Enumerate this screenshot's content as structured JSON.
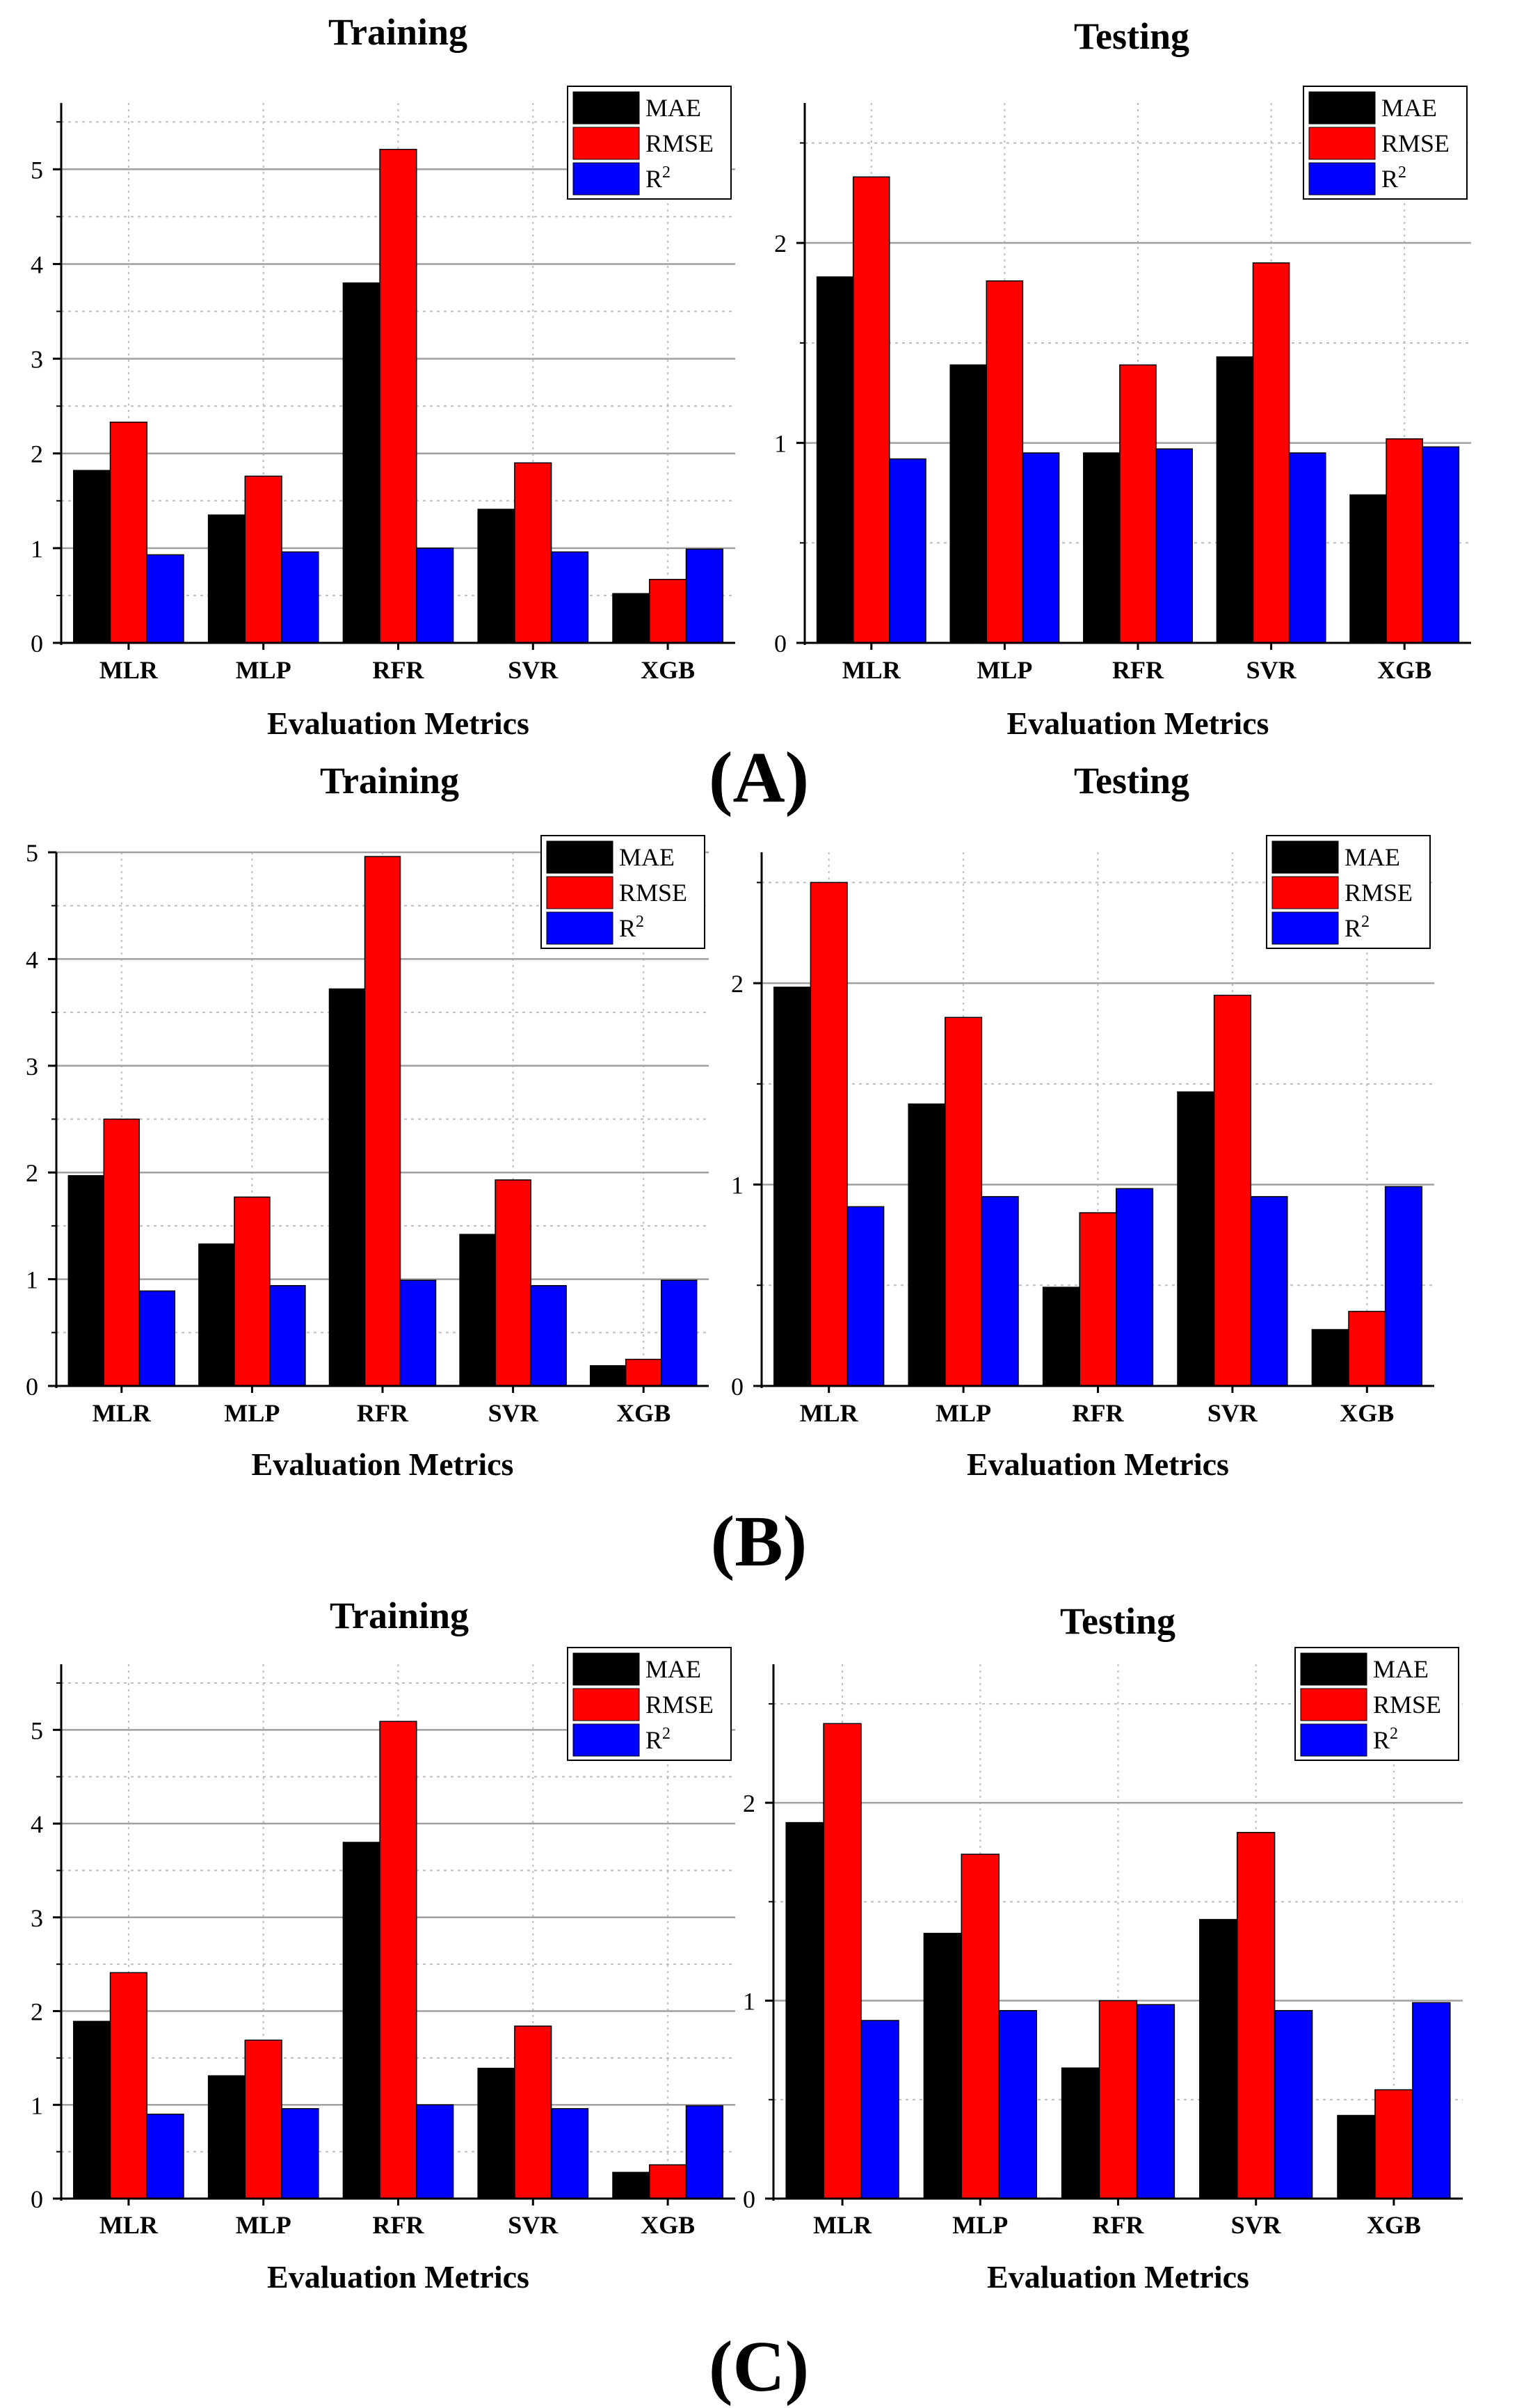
{
  "colors": {
    "mae": "#000000",
    "rmse": "#ff0000",
    "r2": "#0000ff",
    "grid_major": "#a0a0a0",
    "grid_minor": "#bdbdbd"
  },
  "panel_labels": [
    "(A)",
    "(B)",
    "(C)"
  ],
  "chart_data": [
    {
      "panel": "(A)",
      "type": "bar",
      "title": "Training",
      "xlabel": "Evaluation Metrics",
      "ylabel": "",
      "categories": [
        "MLR",
        "MLP",
        "RFR",
        "SVR",
        "XGB"
      ],
      "ylim": [
        0,
        5.7
      ],
      "yticks": [
        0,
        1,
        2,
        3,
        4,
        5
      ],
      "legend": [
        "MAE",
        "RMSE",
        "R"
      ],
      "legend_sup": "2",
      "legend_position": "top-right",
      "series": [
        {
          "name": "MAE",
          "values": [
            1.82,
            1.35,
            3.8,
            1.41,
            0.52
          ]
        },
        {
          "name": "RMSE",
          "values": [
            2.33,
            1.76,
            5.21,
            1.9,
            0.67
          ]
        },
        {
          "name": "R2",
          "values": [
            0.93,
            0.96,
            1.0,
            0.96,
            0.99
          ]
        }
      ]
    },
    {
      "panel": "(A)",
      "type": "bar",
      "title": "Testing",
      "xlabel": "Evaluation Metrics",
      "ylabel": "",
      "categories": [
        "MLR",
        "MLP",
        "RFR",
        "SVR",
        "XGB"
      ],
      "ylim": [
        0,
        2.7
      ],
      "yticks": [
        0,
        1,
        2
      ],
      "legend": [
        "MAE",
        "RMSE",
        "R"
      ],
      "legend_sup": "2",
      "legend_position": "top-right",
      "series": [
        {
          "name": "MAE",
          "values": [
            1.83,
            1.39,
            0.95,
            1.43,
            0.74
          ]
        },
        {
          "name": "RMSE",
          "values": [
            2.33,
            1.81,
            1.39,
            1.9,
            1.02
          ]
        },
        {
          "name": "R2",
          "values": [
            0.92,
            0.95,
            0.97,
            0.95,
            0.98
          ]
        }
      ]
    },
    {
      "panel": "(B)",
      "type": "bar",
      "title": "Training",
      "xlabel": "Evaluation Metrics",
      "ylabel": "",
      "categories": [
        "MLR",
        "MLP",
        "RFR",
        "SVR",
        "XGB"
      ],
      "ylim": [
        0,
        5.0
      ],
      "yticks": [
        0,
        1,
        2,
        3,
        4,
        5
      ],
      "legend": [
        "MAE",
        "RMSE",
        "R"
      ],
      "legend_sup": "2",
      "legend_position": "top-right",
      "series": [
        {
          "name": "MAE",
          "values": [
            1.97,
            1.33,
            3.72,
            1.42,
            0.19
          ]
        },
        {
          "name": "RMSE",
          "values": [
            2.5,
            1.77,
            4.96,
            1.93,
            0.25
          ]
        },
        {
          "name": "R2",
          "values": [
            0.89,
            0.94,
            0.99,
            0.94,
            0.99
          ]
        }
      ]
    },
    {
      "panel": "(B)",
      "type": "bar",
      "title": "Testing",
      "xlabel": "Evaluation Metrics",
      "ylabel": "",
      "categories": [
        "MLR",
        "MLP",
        "RFR",
        "SVR",
        "XGB"
      ],
      "ylim": [
        0,
        2.65
      ],
      "yticks": [
        0,
        1,
        2
      ],
      "legend": [
        "MAE",
        "RMSE",
        "R"
      ],
      "legend_sup": "2",
      "legend_position": "top-right",
      "series": [
        {
          "name": "MAE",
          "values": [
            1.98,
            1.4,
            0.49,
            1.46,
            0.28
          ]
        },
        {
          "name": "RMSE",
          "values": [
            2.5,
            1.83,
            0.86,
            1.94,
            0.37
          ]
        },
        {
          "name": "R2",
          "values": [
            0.89,
            0.94,
            0.98,
            0.94,
            0.99
          ]
        }
      ]
    },
    {
      "panel": "(C)",
      "type": "bar",
      "title": "Training",
      "xlabel": "Evaluation Metrics",
      "ylabel": "",
      "categories": [
        "MLR",
        "MLP",
        "RFR",
        "SVR",
        "XGB"
      ],
      "ylim": [
        0,
        5.7
      ],
      "yticks": [
        0,
        1,
        2,
        3,
        4,
        5
      ],
      "legend": [
        "MAE",
        "RMSE",
        "R"
      ],
      "legend_sup": "2",
      "legend_position": "top-right",
      "series": [
        {
          "name": "MAE",
          "values": [
            1.89,
            1.31,
            3.8,
            1.39,
            0.28
          ]
        },
        {
          "name": "RMSE",
          "values": [
            2.41,
            1.69,
            5.09,
            1.84,
            0.36
          ]
        },
        {
          "name": "R2",
          "values": [
            0.9,
            0.96,
            1.0,
            0.96,
            0.99
          ]
        }
      ]
    },
    {
      "panel": "(C)",
      "type": "bar",
      "title": "Testing",
      "xlabel": "Evaluation Metrics",
      "ylabel": "",
      "categories": [
        "MLR",
        "MLP",
        "RFR",
        "SVR",
        "XGB"
      ],
      "ylim": [
        0,
        2.7
      ],
      "yticks": [
        0,
        1,
        2
      ],
      "legend": [
        "MAE",
        "RMSE",
        "R"
      ],
      "legend_sup": "2",
      "legend_position": "top-right",
      "series": [
        {
          "name": "MAE",
          "values": [
            1.9,
            1.34,
            0.66,
            1.41,
            0.42
          ]
        },
        {
          "name": "RMSE",
          "values": [
            2.4,
            1.74,
            1.0,
            1.85,
            0.55
          ]
        },
        {
          "name": "R2",
          "values": [
            0.9,
            0.95,
            0.98,
            0.95,
            0.99
          ]
        }
      ]
    }
  ]
}
